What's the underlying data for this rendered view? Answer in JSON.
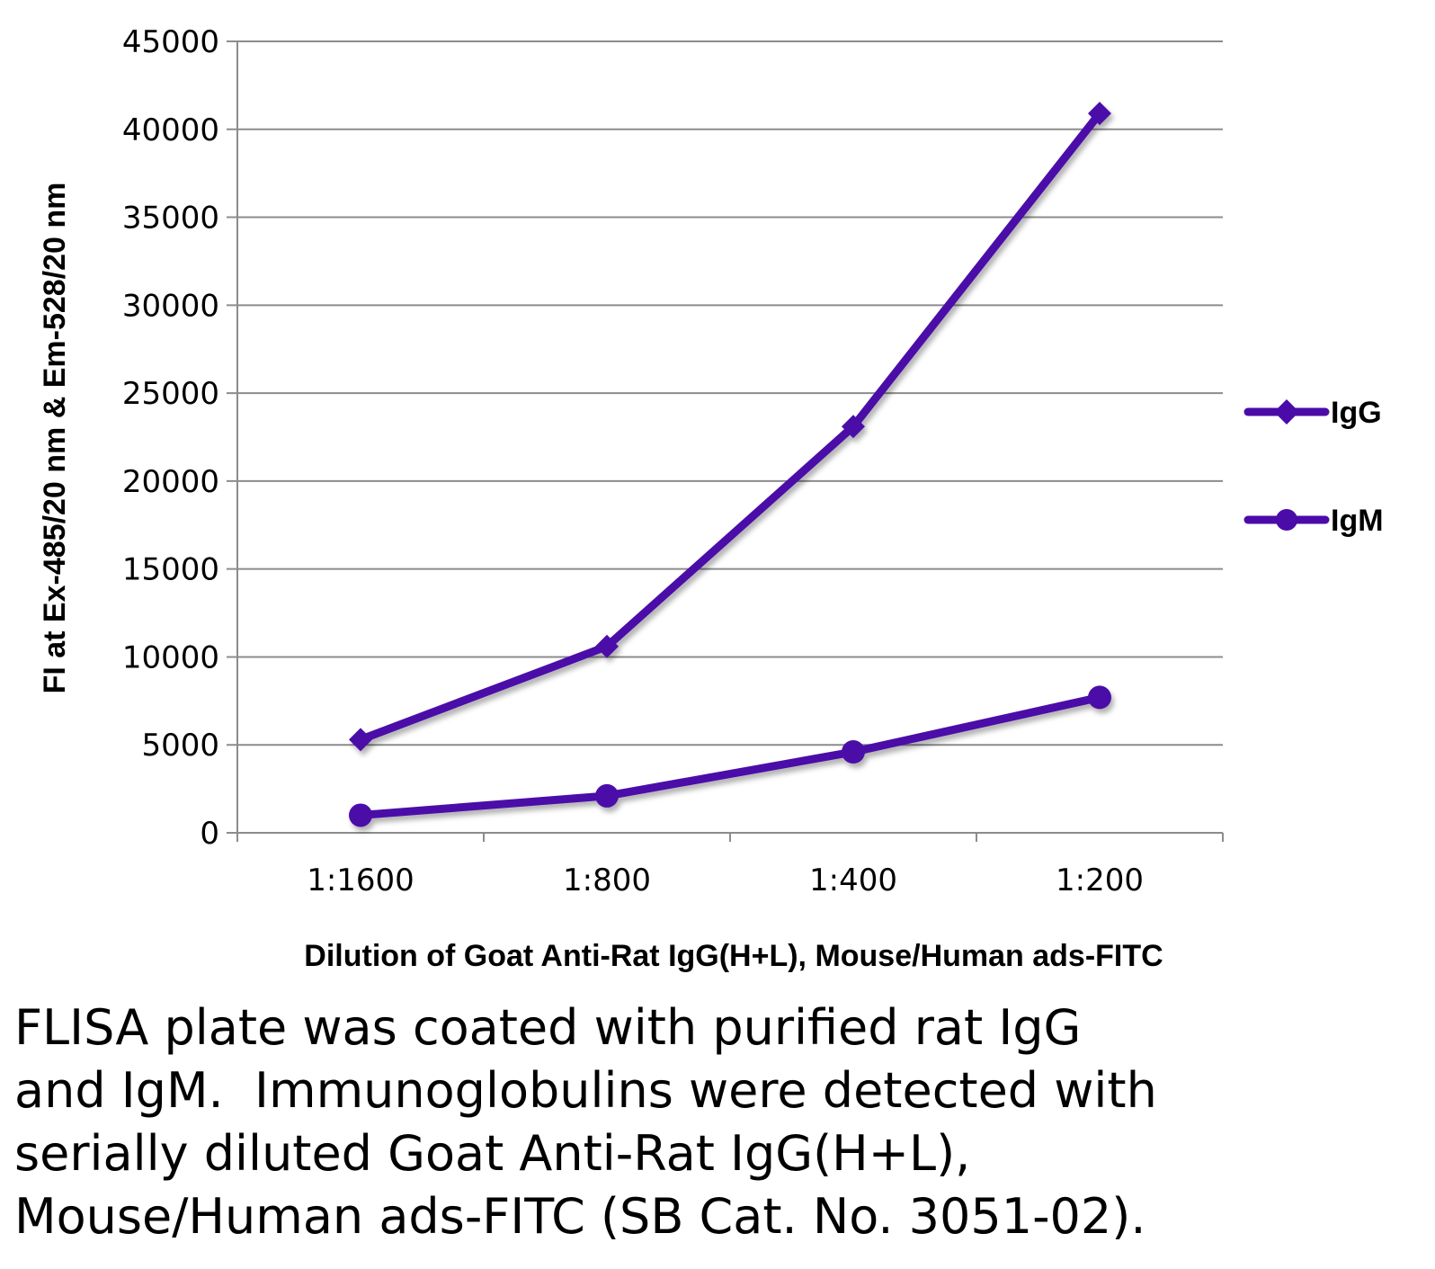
{
  "chart_data": {
    "type": "line",
    "title": "",
    "categories": [
      "1:1600",
      "1:800",
      "1:400",
      "1:200"
    ],
    "series": [
      {
        "name": "IgG",
        "marker": "diamond",
        "values": [
          5300,
          10600,
          23100,
          40900
        ]
      },
      {
        "name": "IgM",
        "marker": "circle",
        "values": [
          1000,
          2100,
          4600,
          7700
        ]
      }
    ],
    "xlabel": "Dilution of Goat Anti-Rat IgG(H+L), Mouse/Human ads-FITC",
    "ylabel": "FI at Ex-485/20 nm & Em-528/20 nm",
    "ylim": [
      0,
      45000
    ],
    "yticks": [
      0,
      5000,
      10000,
      15000,
      20000,
      25000,
      30000,
      35000,
      40000,
      45000
    ],
    "grid": true,
    "legend": "right",
    "line_color": "#4B0BA8"
  },
  "caption": {
    "lines": [
      "FLISA plate was coated with purified rat IgG",
      "and IgM.  Immunoglobulins were detected with",
      "serially diluted Goat Anti-Rat IgG(H+L),",
      "Mouse/Human ads-FITC (SB Cat. No. 3051-02)."
    ]
  }
}
